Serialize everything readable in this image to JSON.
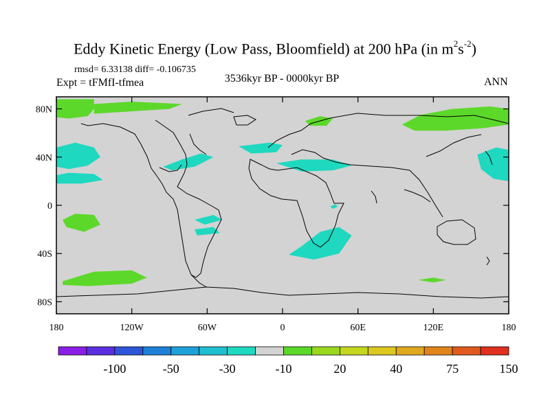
{
  "chart_data": {
    "type": "heatmap",
    "title_main": "Eddy Kinetic Energy (Low Pass, Bloomfield) at 200 hPa (in m",
    "title_exp1": "2",
    "title_mid": "s",
    "title_exp2": "-2",
    "title_close": ")",
    "stats": "rmsd= 6.33138 diff= -0.106735",
    "experiment": "Expt = tFMfI-tfmea",
    "period": "3536kyr BP - 0000kyr BP",
    "season": "ANN",
    "xlim": [
      -180,
      180
    ],
    "ylim": [
      -90,
      90
    ],
    "x_ticks": [
      {
        "value": -180,
        "label": "180"
      },
      {
        "value": -120,
        "label": "120W"
      },
      {
        "value": -60,
        "label": "60W"
      },
      {
        "value": 0,
        "label": "0"
      },
      {
        "value": 60,
        "label": "60E"
      },
      {
        "value": 120,
        "label": "120E"
      },
      {
        "value": 180,
        "label": "180"
      }
    ],
    "y_ticks": [
      {
        "value": 80,
        "label": "80N"
      },
      {
        "value": 40,
        "label": "40N"
      },
      {
        "value": 0,
        "label": "0"
      },
      {
        "value": -40,
        "label": "40S"
      },
      {
        "value": -80,
        "label": "80S"
      }
    ],
    "background_color": "#d3d3d3",
    "colorbar": {
      "colors": [
        "#8a1ee6",
        "#5a2fe0",
        "#2f56d8",
        "#1e7fd8",
        "#1ea0d8",
        "#1ebfd0",
        "#1ed8c0",
        "#d3d3d3",
        "#5cd82a",
        "#9ad81e",
        "#c4d81e",
        "#dcc81e",
        "#e0a81e",
        "#e0841e",
        "#e05a1e",
        "#e0301e"
      ],
      "labels": [
        {
          "index": 2,
          "label": "-100"
        },
        {
          "index": 4,
          "label": "-50"
        },
        {
          "index": 6,
          "label": "-30"
        },
        {
          "index": 8,
          "label": "-10"
        },
        {
          "index": 10,
          "label": "20"
        },
        {
          "index": 12,
          "label": "40"
        },
        {
          "index": 14,
          "label": "75"
        },
        {
          "index": 16,
          "label": "150"
        }
      ]
    },
    "regions": [
      {
        "name": "arctic-atlantic-positive",
        "level": 20,
        "color": "#5cd82a",
        "points": [
          [
            -180,
            88
          ],
          [
            -150,
            88
          ],
          [
            -150,
            80
          ],
          [
            -155,
            74
          ],
          [
            -170,
            72
          ],
          [
            -180,
            73
          ]
        ]
      },
      {
        "name": "north-pacific-ne-positive",
        "level": 20,
        "color": "#5cd82a",
        "points": [
          [
            -150,
            84
          ],
          [
            -120,
            86
          ],
          [
            -80,
            84
          ],
          [
            -90,
            80
          ],
          [
            -120,
            78
          ],
          [
            -150,
            76
          ]
        ]
      },
      {
        "name": "north-pacific-negative",
        "level": -10,
        "color": "#1ed8c0",
        "points": [
          [
            -180,
            48
          ],
          [
            -165,
            52
          ],
          [
            -150,
            48
          ],
          [
            -145,
            40
          ],
          [
            -155,
            33
          ],
          [
            -170,
            30
          ],
          [
            -180,
            32
          ]
        ]
      },
      {
        "name": "pacific-40n-negative",
        "level": -10,
        "color": "#1ed8c0",
        "points": [
          [
            -180,
            25
          ],
          [
            -170,
            27
          ],
          [
            -150,
            26
          ],
          [
            -143,
            21
          ],
          [
            -160,
            18
          ],
          [
            -180,
            18
          ]
        ]
      },
      {
        "name": "us-east-negative",
        "level": -10,
        "color": "#1ed8c0",
        "points": [
          [
            -95,
            32
          ],
          [
            -80,
            38
          ],
          [
            -65,
            43
          ],
          [
            -55,
            40
          ],
          [
            -70,
            32
          ],
          [
            -88,
            29
          ]
        ]
      },
      {
        "name": "atlantic-north-negative",
        "level": -10,
        "color": "#1ed8c0",
        "points": [
          [
            -35,
            49
          ],
          [
            -10,
            52
          ],
          [
            0,
            50
          ],
          [
            -5,
            44
          ],
          [
            -25,
            43
          ]
        ]
      },
      {
        "name": "europe-africa-negative",
        "level": -10,
        "color": "#1ed8c0",
        "points": [
          [
            -5,
            35
          ],
          [
            15,
            38
          ],
          [
            40,
            38
          ],
          [
            55,
            33
          ],
          [
            40,
            29
          ],
          [
            15,
            28
          ]
        ]
      },
      {
        "name": "siberia-positive",
        "level": 20,
        "color": "#5cd82a",
        "points": [
          [
            95,
            67
          ],
          [
            110,
            75
          ],
          [
            135,
            80
          ],
          [
            165,
            82
          ],
          [
            180,
            80
          ],
          [
            180,
            67
          ],
          [
            160,
            64
          ],
          [
            130,
            62
          ],
          [
            105,
            62
          ]
        ]
      },
      {
        "name": "north-sea-positive",
        "level": 20,
        "color": "#5cd82a",
        "points": [
          [
            18,
            70
          ],
          [
            30,
            74
          ],
          [
            40,
            72
          ],
          [
            35,
            66
          ],
          [
            22,
            66
          ]
        ]
      },
      {
        "name": "east-pacific-negative",
        "level": -10,
        "color": "#1ed8c0",
        "points": [
          [
            155,
            42
          ],
          [
            170,
            48
          ],
          [
            180,
            46
          ],
          [
            180,
            20
          ],
          [
            168,
            22
          ],
          [
            158,
            30
          ]
        ]
      },
      {
        "name": "pacific-south-positive",
        "level": 20,
        "color": "#5cd82a",
        "points": [
          [
            -175,
            -12
          ],
          [
            -165,
            -7
          ],
          [
            -150,
            -8
          ],
          [
            -145,
            -16
          ],
          [
            -158,
            -22
          ],
          [
            -172,
            -18
          ]
        ]
      },
      {
        "name": "south-africa-negative",
        "level": -10,
        "color": "#1ed8c0",
        "points": [
          [
            5,
            -41
          ],
          [
            15,
            -34
          ],
          [
            30,
            -22
          ],
          [
            45,
            -18
          ],
          [
            55,
            -25
          ],
          [
            45,
            -40
          ],
          [
            25,
            -45
          ]
        ]
      },
      {
        "name": "indian-ocean-negative",
        "level": -10,
        "color": "#1ed8c0",
        "points": [
          [
            12,
            -36
          ],
          [
            22,
            -34
          ],
          [
            22,
            -40
          ],
          [
            14,
            -41
          ]
        ]
      },
      {
        "name": "pacific-southwest-positive",
        "level": 20,
        "color": "#5cd82a",
        "points": [
          [
            -175,
            -63
          ],
          [
            -150,
            -55
          ],
          [
            -120,
            -54
          ],
          [
            -108,
            -60
          ],
          [
            -120,
            -65
          ],
          [
            -155,
            -67
          ],
          [
            -175,
            -66
          ]
        ]
      },
      {
        "name": "indian-south-positive",
        "level": 20,
        "color": "#5cd82a",
        "points": [
          [
            108,
            -62
          ],
          [
            120,
            -60
          ],
          [
            130,
            -62
          ],
          [
            120,
            -64
          ]
        ]
      },
      {
        "name": "south-pacific-small-negative",
        "level": -10,
        "color": "#1ed8c0",
        "points": [
          [
            -70,
            -20
          ],
          [
            -55,
            -18
          ],
          [
            -50,
            -23
          ],
          [
            -68,
            -25
          ]
        ]
      },
      {
        "name": "equatorial-atlantic-negative",
        "level": -10,
        "color": "#1ed8c0",
        "points": [
          [
            -70,
            -12
          ],
          [
            -55,
            -8
          ],
          [
            -48,
            -12
          ],
          [
            -62,
            -16
          ]
        ]
      },
      {
        "name": "indian-small-negative",
        "level": -10,
        "color": "#1ed8c0",
        "points": [
          [
            38,
            -1
          ],
          [
            42,
            1
          ],
          [
            44,
            -1
          ],
          [
            40,
            -3
          ]
        ]
      }
    ]
  }
}
